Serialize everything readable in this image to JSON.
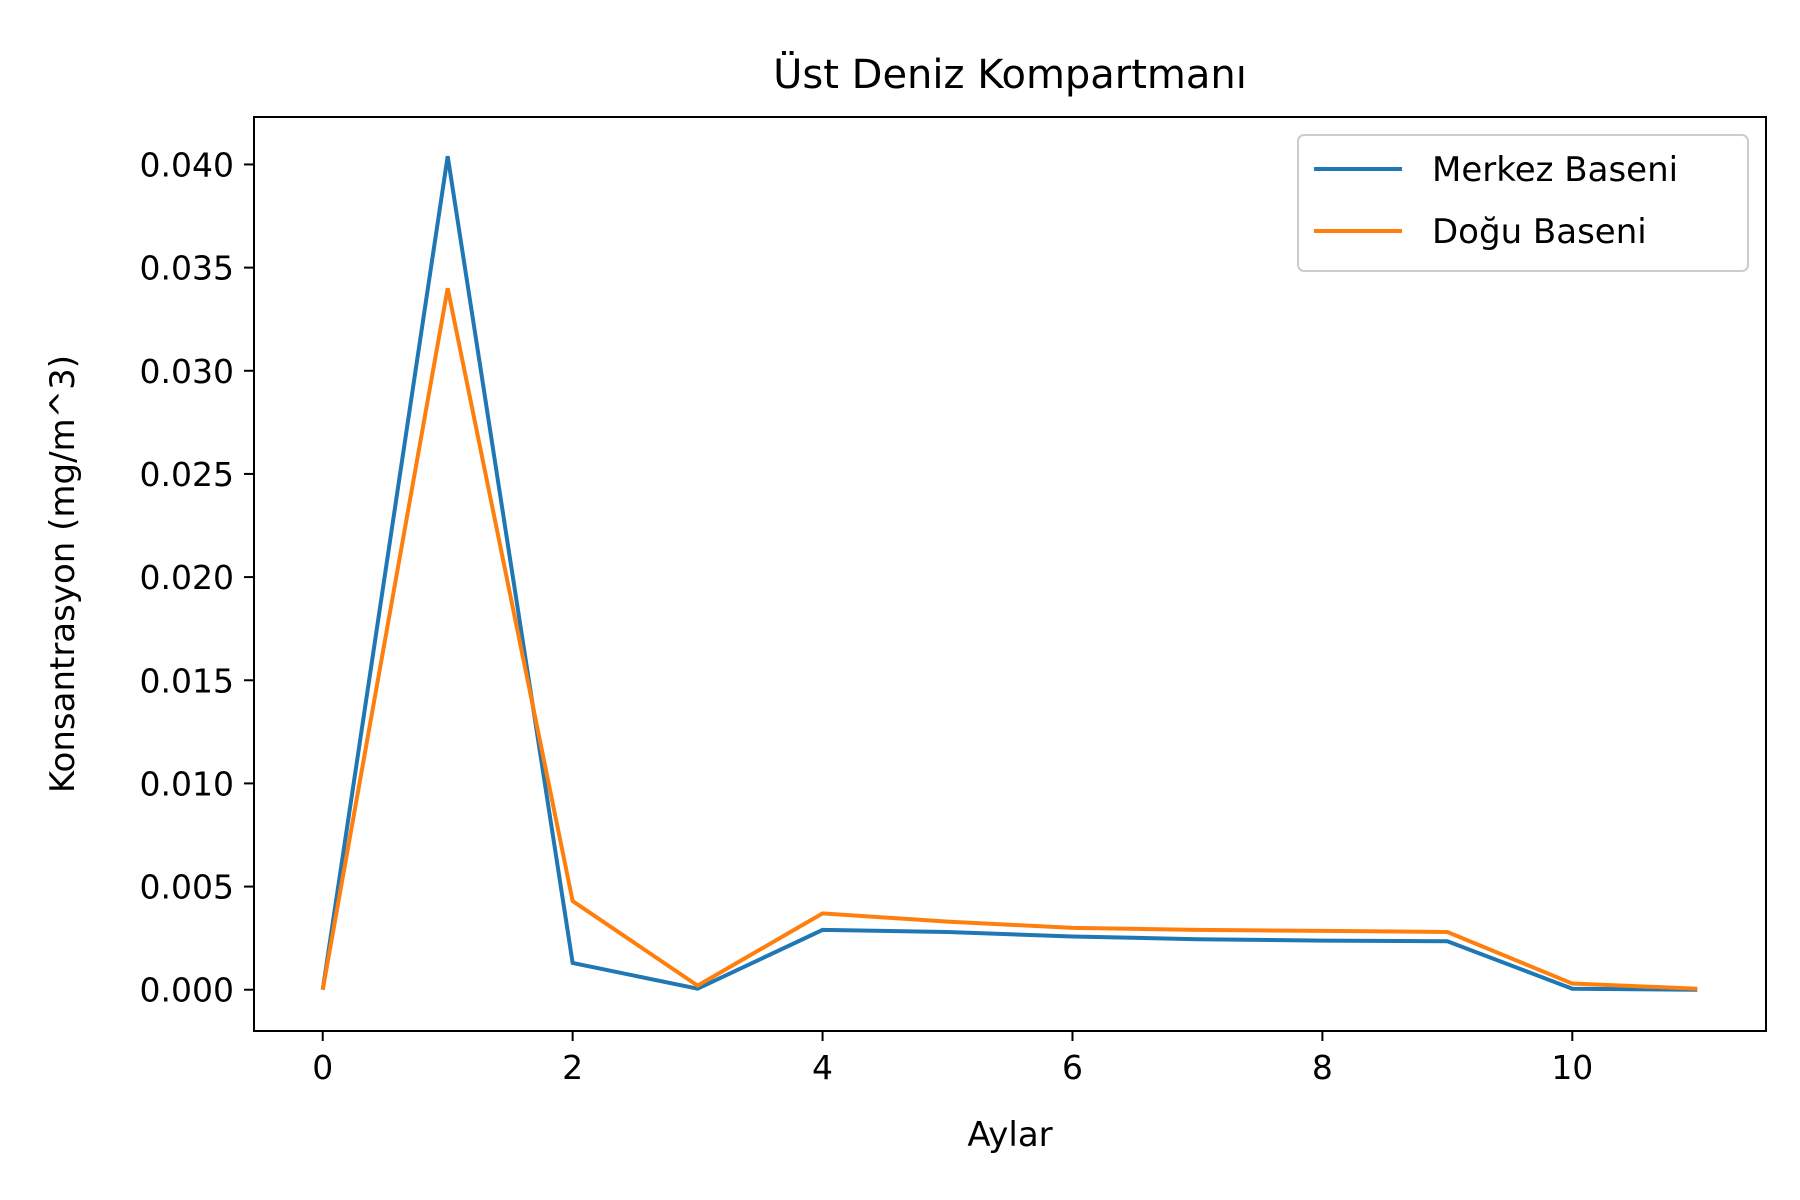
{
  "chart_data": {
    "type": "line",
    "title": "Üst Deniz Kompartmanı",
    "xlabel": "Aylar",
    "ylabel": "Konsantrasyon (mg/m^3)",
    "x": [
      0,
      1,
      2,
      3,
      4,
      5,
      6,
      7,
      8,
      9,
      10,
      11
    ],
    "xlim": [
      -0.55,
      11.55
    ],
    "ylim": [
      -0.002,
      0.0423
    ],
    "xticks": [
      0,
      2,
      4,
      6,
      8,
      10
    ],
    "xtick_labels": [
      "0",
      "2",
      "4",
      "6",
      "8",
      "10"
    ],
    "yticks": [
      0,
      0.005,
      0.01,
      0.015,
      0.02,
      0.025,
      0.03,
      0.035,
      0.04
    ],
    "ytick_labels": [
      "0.000",
      "0.005",
      "0.010",
      "0.015",
      "0.020",
      "0.025",
      "0.030",
      "0.035",
      "0.040"
    ],
    "grid": false,
    "legend_position": "top-right",
    "series": [
      {
        "name": "Merkez Baseni",
        "color": "#1f77b4",
        "values": [
          0.0,
          0.0404,
          0.0013,
          5e-05,
          0.0029,
          0.0028,
          0.00258,
          0.00245,
          0.00238,
          0.00235,
          5e-05,
          0.0
        ]
      },
      {
        "name": "Doğu Baseni",
        "color": "#ff7f0e",
        "values": [
          0.0,
          0.034,
          0.0043,
          0.0002,
          0.0037,
          0.0033,
          0.003,
          0.0029,
          0.00285,
          0.0028,
          0.0003,
          5e-05
        ]
      }
    ]
  }
}
